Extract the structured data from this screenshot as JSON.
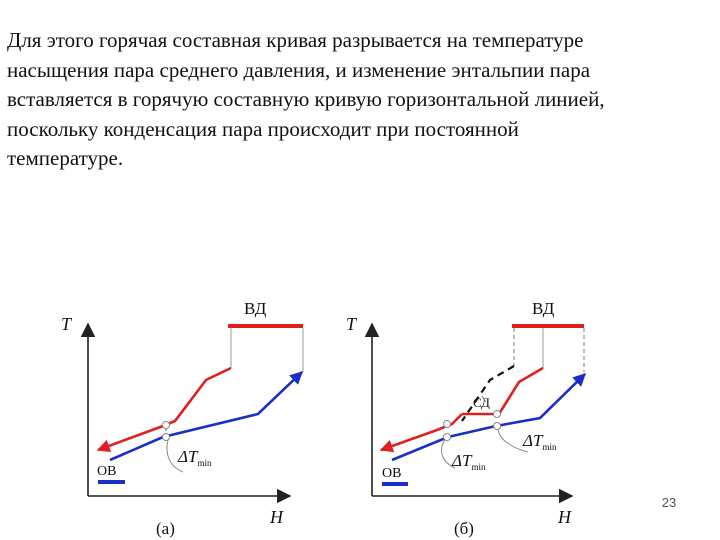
{
  "slide": {
    "paragraph": [
      "Для этого горячая составная кривая разрывается на температуре",
      "насыщения пара среднего давления, и изменение энтальпии пара",
      "вставляется в горячую составную кривую горизонтальной линией,",
      "поскольку конденсация пара происходит при постоянной",
      "температуре."
    ],
    "page_number": "23"
  },
  "diagrams": [
    {
      "y_axis": "T",
      "x_axis": "H",
      "caption": "(а)",
      "hp_label": "ВД",
      "cw_label": "ОВ",
      "dt": {
        "delta": "ΔT",
        "sub": "min"
      }
    },
    {
      "y_axis": "T",
      "x_axis": "H",
      "caption": "(б)",
      "hp_label": "ВД",
      "mp_label": "СД",
      "cw_label": "ОВ",
      "dt1": {
        "delta": "ΔT",
        "sub": "min"
      },
      "dt2": {
        "delta": "ΔT",
        "sub": "min"
      }
    }
  ],
  "colors": {
    "hot": "#e02020",
    "cold": "#1a2fc8",
    "axis": "#222222",
    "mp_dashed": "#111111",
    "dt_circle": "#888888"
  }
}
